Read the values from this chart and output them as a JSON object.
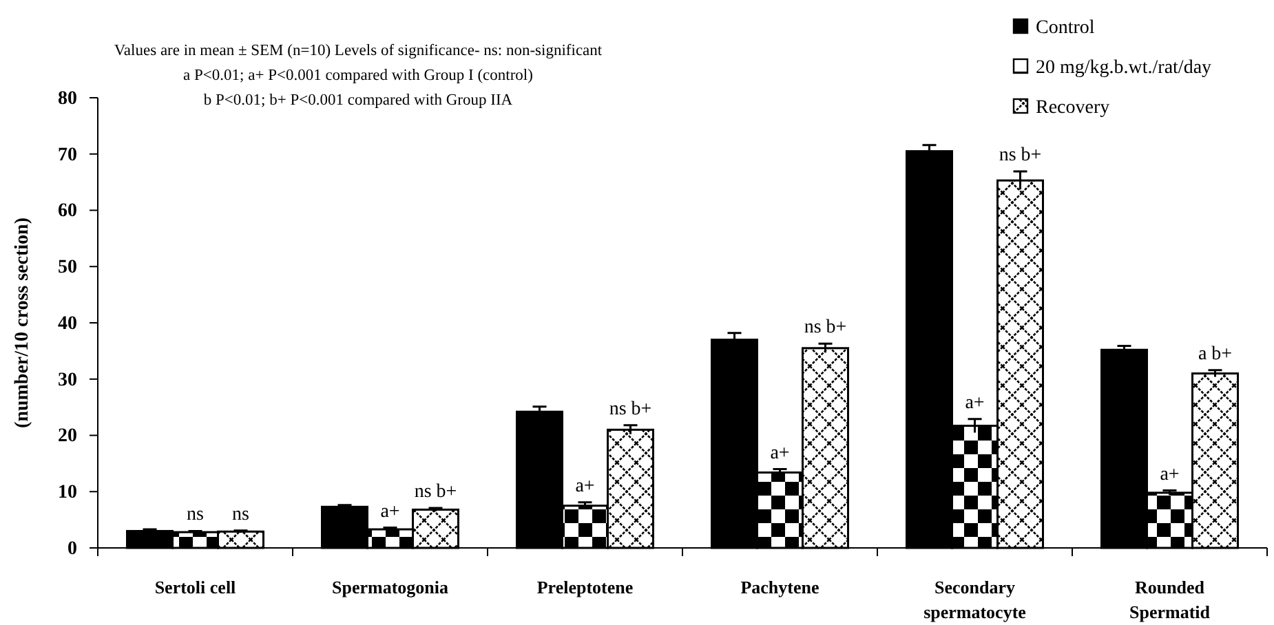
{
  "chart_data": {
    "type": "bar",
    "ylabel": "(number/10 cross section)",
    "categories": [
      "Sertoli cell",
      "Spermatogonia",
      "Preleptotene",
      "Pachytene",
      "Secondary spermatocyte",
      "Rounded Spermatid"
    ],
    "series": [
      {
        "name": "Control",
        "color": "#000000",
        "values": [
          3.0,
          7.3,
          24.2,
          37.0,
          70.5,
          35.2
        ],
        "errors": [
          0.3,
          0.3,
          0.9,
          1.2,
          1.1,
          0.7
        ]
      },
      {
        "name": "20 mg/kg.b.wt./rat/day",
        "color": "#000000",
        "values": [
          2.8,
          3.3,
          7.5,
          13.4,
          21.7,
          9.8
        ],
        "errors": [
          0.2,
          0.3,
          0.6,
          0.6,
          1.2,
          0.4
        ],
        "value_labels": [
          "ns",
          "a+",
          "a+",
          "a+",
          "a+",
          "a+"
        ]
      },
      {
        "name": "Recovery",
        "color": "#000000",
        "values": [
          2.9,
          6.8,
          21.0,
          35.5,
          65.3,
          31.0
        ],
        "errors": [
          0.2,
          0.3,
          0.8,
          0.8,
          1.6,
          0.6
        ],
        "value_labels": [
          "ns",
          "ns b+",
          "ns b+",
          "ns b+",
          "ns b+",
          "a b+"
        ]
      }
    ],
    "ylim": [
      0,
      80
    ],
    "yticks": [
      0,
      10,
      20,
      30,
      40,
      50,
      60,
      70,
      80
    ],
    "legend": "top right",
    "annotations": [
      "Values are in mean ± SEM (n=10) Levels of significance- ns: non-significant",
      "a P<0.01; a+ P<0.001 compared with Group I (control)",
      "b P<0.01; b+ P<0.001 compared with Group IIA"
    ]
  }
}
